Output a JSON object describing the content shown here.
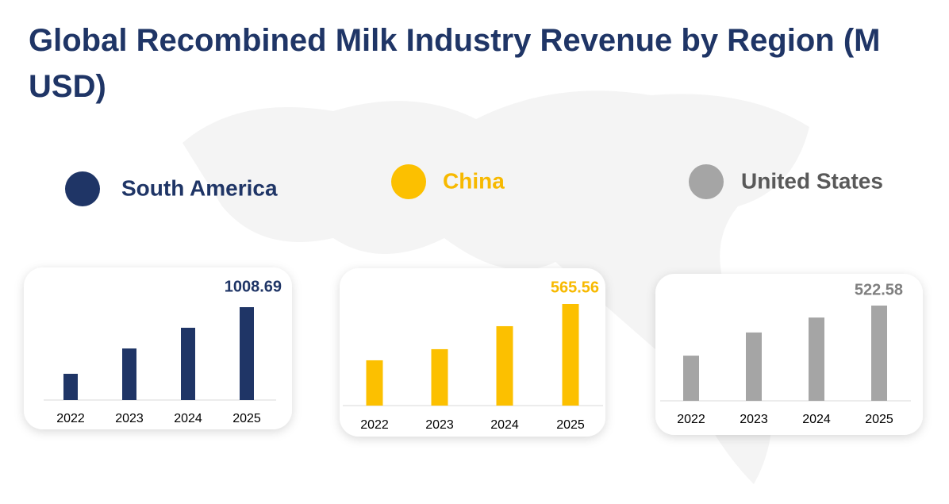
{
  "title": "Global Recombined Milk Industry Revenue by Region (M USD)",
  "chart_data": [
    {
      "type": "bar",
      "title": "South America",
      "color": "#1f3566",
      "categories": [
        "2022",
        "2023",
        "2024",
        "2025"
      ],
      "values": [
        285,
        560,
        785,
        1008.69
      ]
    },
    {
      "type": "bar",
      "title": "China",
      "color": "#fcc000",
      "categories": [
        "2022",
        "2023",
        "2024",
        "2025"
      ],
      "values": [
        252,
        314,
        442,
        565.56
      ]
    },
    {
      "type": "bar",
      "title": "United States",
      "color": "#a5a5a5",
      "categories": [
        "2022",
        "2023",
        "2024",
        "2025"
      ],
      "values": [
        248,
        375,
        457,
        522.58
      ]
    }
  ]
}
